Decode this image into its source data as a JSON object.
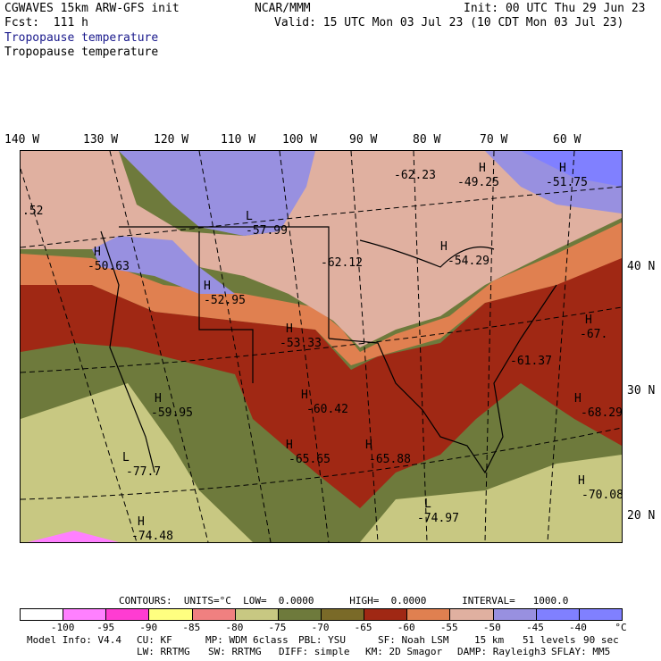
{
  "header": {
    "model_line": "CGWAVES 15km ARW-GFS init",
    "fcst_line": "Fcst:  111 h",
    "center": "NCAR/MMM",
    "init_line": "Init: 00 UTC Thu 29 Jun 23",
    "valid_line": "Valid: 15 UTC Mon 03 Jul 23 (10 CDT Mon 03 Jul 23)",
    "field_title_1": "Tropopause temperature",
    "field_title_2": "Tropopause temperature"
  },
  "longitude_labels": [
    "140 W",
    "130 W",
    "120 W",
    "110 W",
    "100 W",
    "90 W",
    "80 W",
    "70 W",
    "60 W"
  ],
  "latitude_labels": [
    "40 N",
    "30 N",
    "20 N"
  ],
  "map_labels": [
    {
      "kind": "H",
      "value": "-49.25"
    },
    {
      "kind": "H",
      "value": "-51.75"
    },
    {
      "kind": "",
      "value": "-62.23"
    },
    {
      "kind": "L",
      "value": "-57.99"
    },
    {
      "kind": "",
      "value": ".52"
    },
    {
      "kind": "H",
      "value": "-50.63"
    },
    {
      "kind": "",
      "value": "-62.12"
    },
    {
      "kind": "H",
      "value": "-54.29"
    },
    {
      "kind": "H",
      "value": "-52.95"
    },
    {
      "kind": "H",
      "value": "-53.33"
    },
    {
      "kind": "H",
      "value": "-67."
    },
    {
      "kind": "",
      "value": "-61.37"
    },
    {
      "kind": "H",
      "value": "-59.95"
    },
    {
      "kind": "H",
      "value": "-60.42"
    },
    {
      "kind": "H",
      "value": "-68.29"
    },
    {
      "kind": "L",
      "value": "-77.7"
    },
    {
      "kind": "H",
      "value": "-65.65"
    },
    {
      "kind": "H",
      "value": "-65.88"
    },
    {
      "kind": "H",
      "value": "-70.08"
    },
    {
      "kind": "L",
      "value": "-74.97"
    },
    {
      "kind": "H",
      "value": "-74.48"
    }
  ],
  "contours_line": "CONTOURS:  UNITS=°C  LOW=  0.0000      HIGH=  0.0000      INTERVAL=   1000.0",
  "legend": {
    "ticks": [
      "-100",
      "-95",
      "-90",
      "-85",
      "-80",
      "-75",
      "-70",
      "-65",
      "-60",
      "-55",
      "-50",
      "-45",
      "-40",
      "°C"
    ],
    "colors": [
      "#ffffff",
      "#ff80ff",
      "#ff3cd2",
      "#ffff80",
      "#f08080",
      "#c8c882",
      "#6e7a3c",
      "#7a6a28",
      "#a02814",
      "#e08050",
      "#e0b0a0",
      "#9890e0",
      "#8080ff",
      "#8080ff"
    ]
  },
  "footer": {
    "line1": [
      "Model Info: V4.4",
      "CU: KF",
      "MP: WDM 6class",
      "PBL: YSU",
      "SF: Noah LSM",
      "15 km",
      "51 levels",
      "90 sec"
    ],
    "line2": [
      "LW: RRTMG",
      "SW: RRTMG",
      "DIFF: simple",
      "KM: 2D Smagor",
      "DAMP: Rayleigh3",
      "SFLAY: MM5"
    ]
  }
}
